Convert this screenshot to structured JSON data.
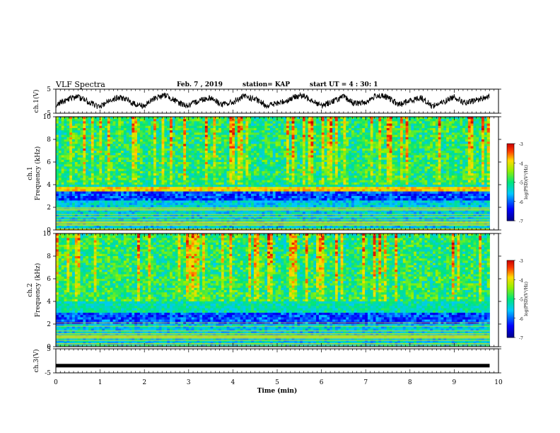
{
  "header": {
    "title": "VLF Spectra",
    "date": "Feb. 7  , 2019",
    "station": "station= KAP",
    "start": "start  UT  =   4 : 30: 1"
  },
  "chart_data": [
    {
      "type": "line",
      "panel": "ch1-waveform",
      "ylabel": "ch.1(V)",
      "ylim": [
        -5,
        5
      ],
      "yticks": [
        {
          "value": 5,
          "label": "5"
        },
        {
          "value": -5,
          "label": "-5"
        }
      ],
      "x_range": [
        0,
        10
      ],
      "data_extent_min": [
        0,
        9.8
      ],
      "series": [
        {
          "x": [
            0,
            0.25,
            0.5,
            0.75,
            1.0,
            1.25,
            1.5,
            1.75,
            2.0,
            2.25,
            2.5,
            2.75,
            3.0,
            3.25,
            3.5,
            3.75,
            4.0,
            4.25,
            4.5,
            4.75,
            5.0,
            5.25,
            5.5,
            5.75,
            6.0,
            6.25,
            6.5,
            6.75,
            7.0,
            7.25,
            7.5,
            7.75,
            8.0,
            8.25,
            8.5,
            8.75,
            9.0,
            9.25,
            9.5,
            9.8
          ],
          "values": [
            -1.5,
            0.5,
            2.0,
            -0.5,
            -2.5,
            0.8,
            1.5,
            -1.0,
            -2.0,
            1.5,
            2.5,
            -0.5,
            -2.0,
            0.5,
            1.5,
            -1.5,
            -0.5,
            2.0,
            0.8,
            -1.8,
            -1.0,
            0.5,
            2.5,
            1.0,
            -2.0,
            0.0,
            1.8,
            -1.0,
            -0.5,
            2.5,
            1.5,
            -1.5,
            0.2,
            1.5,
            -2.0,
            -0.5,
            2.0,
            -1.0,
            0.5,
            2.0
          ]
        }
      ]
    },
    {
      "type": "heatmap",
      "panel": "ch1-spectrogram",
      "ylabel_line1": "ch.1",
      "ylabel_line2": "Frequency  (kHz)",
      "ylim": [
        0,
        10
      ],
      "yticks": [
        {
          "value": 0,
          "label": "0"
        },
        {
          "value": 2,
          "label": "2"
        },
        {
          "value": 4,
          "label": "4"
        },
        {
          "value": 6,
          "label": "6"
        },
        {
          "value": 8,
          "label": "8"
        },
        {
          "value": 10,
          "label": "10"
        }
      ],
      "x_range": [
        0,
        10
      ],
      "data_extent_min": [
        0,
        9.8
      ],
      "colorbar": {
        "label": "log(PSD)(V²/Hz)",
        "range": [
          -7,
          -3
        ],
        "ticks": [
          {
            "value": -3,
            "label": "-3"
          },
          {
            "value": -4,
            "label": "-4"
          },
          {
            "value": -5,
            "label": "-5"
          },
          {
            "value": -6,
            "label": "-6"
          },
          {
            "value": -7,
            "label": "-7"
          }
        ]
      },
      "quiet_band_khz": [
        2.5,
        3.3
      ],
      "strong_band_khz": [
        3.4,
        3.8
      ]
    },
    {
      "type": "heatmap",
      "panel": "ch2-spectrogram",
      "ylabel_line1": "ch.2",
      "ylabel_line2": "Frequency  (kHz)",
      "ylim": [
        0,
        10
      ],
      "yticks": [
        {
          "value": 0,
          "label": "0"
        },
        {
          "value": 2,
          "label": "2"
        },
        {
          "value": 4,
          "label": "4"
        },
        {
          "value": 6,
          "label": "6"
        },
        {
          "value": 8,
          "label": "8"
        },
        {
          "value": 10,
          "label": "10"
        }
      ],
      "x_range": [
        0,
        10
      ],
      "data_extent_min": [
        0,
        9.8
      ],
      "colorbar": {
        "label": "log(PSD)(V²/Hz)",
        "range": [
          -7,
          -3
        ],
        "ticks": [
          {
            "value": -3,
            "label": "-3"
          },
          {
            "value": -4,
            "label": "-4"
          },
          {
            "value": -5,
            "label": "-5"
          },
          {
            "value": -6,
            "label": "-6"
          },
          {
            "value": -7,
            "label": "-7"
          }
        ]
      },
      "quiet_band_khz": [
        2.0,
        3.0
      ]
    },
    {
      "type": "line",
      "panel": "ch3-waveform",
      "ylabel": "ch.3(V)",
      "ylim": [
        -5,
        5
      ],
      "yticks": [
        {
          "value": 5,
          "label": "5"
        },
        {
          "value": -5,
          "label": "-5"
        }
      ],
      "x_range": [
        0,
        10
      ],
      "data_extent_min": [
        0,
        9.8
      ],
      "series": [
        {
          "x": [
            0,
            9.8
          ],
          "values": [
            -2,
            -2
          ]
        }
      ],
      "xlabel": "Time  (min)",
      "xticks": [
        {
          "value": 0,
          "label": "0"
        },
        {
          "value": 1,
          "label": "1"
        },
        {
          "value": 2,
          "label": "2"
        },
        {
          "value": 3,
          "label": "3"
        },
        {
          "value": 4,
          "label": "4"
        },
        {
          "value": 5,
          "label": "5"
        },
        {
          "value": 6,
          "label": "6"
        },
        {
          "value": 7,
          "label": "7"
        },
        {
          "value": 8,
          "label": "8"
        },
        {
          "value": 9,
          "label": "9"
        },
        {
          "value": 10,
          "label": "10"
        }
      ]
    }
  ]
}
